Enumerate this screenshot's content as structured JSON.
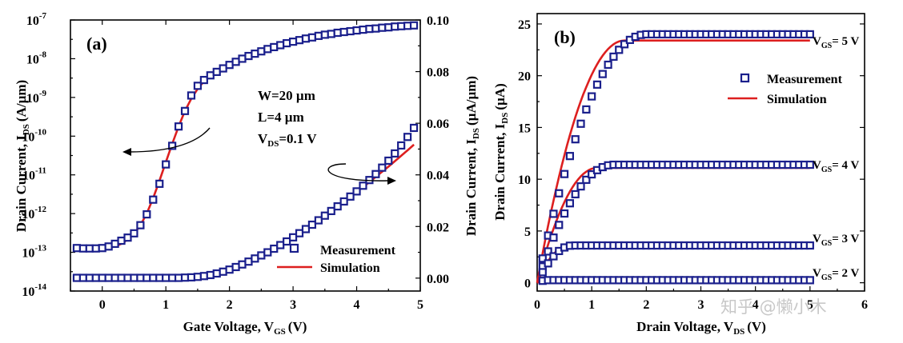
{
  "chart_data": [
    {
      "type": "line",
      "panel_label": "(a)",
      "xlabel": "Gate Voltage, V",
      "xlabel_sub": "GS",
      "xlabel_unit": "(V)",
      "ylabel_left": "Drain Current, I",
      "ylabel_left_sub": "DS",
      "ylabel_left_unit": "(A/µm)",
      "ylabel_right": "Drain Current, I",
      "ylabel_right_sub": "DS",
      "ylabel_right_unit": "(µA/µm)",
      "xlim": [
        -0.5,
        5
      ],
      "x_ticks": [
        "0",
        "1",
        "2",
        "3",
        "4",
        "5"
      ],
      "left_exponents": [
        "-14",
        "-13",
        "-12",
        "-11",
        "-10",
        "-9",
        "-8",
        "-7"
      ],
      "right_ticks": [
        "0.00",
        "0.02",
        "0.04",
        "0.06",
        "0.08",
        "0.10"
      ],
      "ylim_right": [
        -0.005,
        0.1
      ],
      "annotation": {
        "w": "W=20 µm",
        "l": "L=4 µm",
        "vds_prefix": "V",
        "vds_sub": "DS",
        "vds_value": "=0.1 V"
      },
      "legend": {
        "measurement": "Measurement",
        "simulation": "Simulation"
      },
      "series": [
        {
          "name": "log-scale (left axis)",
          "x": [
            -0.4,
            -0.3,
            -0.2,
            -0.1,
            0.0,
            0.1,
            0.2,
            0.3,
            0.4,
            0.5,
            0.6,
            0.7,
            0.8,
            0.9,
            1.0,
            1.1,
            1.2,
            1.3,
            1.4,
            1.5,
            1.6,
            1.7,
            1.8,
            1.9,
            2.0,
            2.1,
            2.2,
            2.3,
            2.4,
            2.5,
            2.6,
            2.7,
            2.8,
            2.9,
            3.0,
            3.1,
            3.2,
            3.3,
            3.4,
            3.5,
            3.6,
            3.7,
            3.8,
            3.9,
            4.0,
            4.1,
            4.2,
            4.3,
            4.4,
            4.5,
            4.6,
            4.7,
            4.8,
            4.9
          ],
          "log10_measurement": [
            -12.89,
            -12.9,
            -12.9,
            -12.9,
            -12.89,
            -12.85,
            -12.78,
            -12.7,
            -12.62,
            -12.51,
            -12.3,
            -12.02,
            -11.64,
            -11.23,
            -10.73,
            -10.25,
            -9.75,
            -9.35,
            -8.95,
            -8.7,
            -8.55,
            -8.43,
            -8.34,
            -8.25,
            -8.16,
            -8.08,
            -8.0,
            -7.93,
            -7.87,
            -7.81,
            -7.75,
            -7.7,
            -7.65,
            -7.6,
            -7.56,
            -7.52,
            -7.48,
            -7.45,
            -7.41,
            -7.38,
            -7.36,
            -7.33,
            -7.31,
            -7.29,
            -7.27,
            -7.25,
            -7.23,
            -7.22,
            -7.2,
            -7.19,
            -7.17,
            -7.16,
            -7.15,
            -7.14
          ],
          "log10_simulation": [
            -12.92,
            -12.92,
            -12.92,
            -12.91,
            -12.9,
            -12.88,
            -12.85,
            -12.78,
            -12.67,
            -12.52,
            -12.3,
            -12.0,
            -11.6,
            -11.15,
            -10.67,
            -10.2,
            -9.75,
            -9.35,
            -9.03,
            -8.78,
            -8.58,
            -8.44,
            -8.33,
            -8.24,
            -8.16,
            -8.08,
            -8.01,
            -7.94,
            -7.88,
            -7.82,
            -7.76,
            -7.71,
            -7.66,
            -7.61,
            -7.57,
            -7.53,
            -7.49,
            -7.45,
            -7.42,
            -7.39,
            -7.36,
            -7.33,
            -7.31,
            -7.29,
            -7.27,
            -7.25,
            -7.23,
            -7.22,
            -7.2,
            -7.19,
            -7.17,
            -7.16,
            -7.15,
            -7.14
          ]
        },
        {
          "name": "linear-scale (right axis)",
          "x": [
            -0.4,
            -0.3,
            -0.2,
            -0.1,
            0.0,
            0.1,
            0.2,
            0.3,
            0.4,
            0.5,
            0.6,
            0.7,
            0.8,
            0.9,
            1.0,
            1.1,
            1.2,
            1.3,
            1.4,
            1.5,
            1.6,
            1.7,
            1.8,
            1.9,
            2.0,
            2.1,
            2.2,
            2.3,
            2.4,
            2.5,
            2.6,
            2.7,
            2.8,
            2.9,
            3.0,
            3.1,
            3.2,
            3.3,
            3.4,
            3.5,
            3.6,
            3.7,
            3.8,
            3.9,
            4.0,
            4.1,
            4.2,
            4.3,
            4.4,
            4.5,
            4.6,
            4.7,
            4.8,
            4.9
          ],
          "measurement": [
            0.0001,
            0.0001,
            0.0001,
            0.0001,
            0.0001,
            0.0001,
            0.0001,
            0.0001,
            0.0001,
            0.0001,
            0.0001,
            0.0001,
            0.0001,
            0.0001,
            0.0001,
            0.0001,
            0.0001,
            0.0002,
            0.0003,
            0.0005,
            0.0008,
            0.0012,
            0.0018,
            0.0025,
            0.0033,
            0.0043,
            0.0053,
            0.0064,
            0.0076,
            0.0088,
            0.01,
            0.0114,
            0.0128,
            0.0142,
            0.0158,
            0.0174,
            0.019,
            0.0207,
            0.0224,
            0.0242,
            0.026,
            0.0278,
            0.0297,
            0.0316,
            0.0336,
            0.0358,
            0.038,
            0.0403,
            0.0428,
            0.0455,
            0.0483,
            0.0514,
            0.0547,
            0.0582
          ],
          "simulation": [
            0.0001,
            0.0001,
            0.0001,
            0.0001,
            0.0001,
            0.0001,
            0.0001,
            0.0001,
            0.0001,
            0.0001,
            0.0001,
            0.0001,
            0.0001,
            0.0001,
            0.0001,
            0.0001,
            0.0001,
            0.0002,
            0.0003,
            0.0005,
            0.0008,
            0.0012,
            0.0018,
            0.0025,
            0.0033,
            0.0042,
            0.0052,
            0.0063,
            0.0075,
            0.0088,
            0.0101,
            0.0115,
            0.0129,
            0.0144,
            0.016,
            0.0176,
            0.0192,
            0.0209,
            0.0226,
            0.0243,
            0.0261,
            0.0279,
            0.0297,
            0.0315,
            0.0334,
            0.0353,
            0.0372,
            0.0392,
            0.0412,
            0.0432,
            0.0453,
            0.0474,
            0.0495,
            0.0517
          ]
        }
      ]
    },
    {
      "type": "line",
      "panel_label": "(b)",
      "xlabel": "Drain Voltage, V",
      "xlabel_sub": "DS",
      "xlabel_unit": "(V)",
      "ylabel": "Drain Current, I",
      "ylabel_sub": "DS",
      "ylabel_unit": "(µA)",
      "xlim": [
        0,
        6
      ],
      "ylim": [
        -0.8,
        26
      ],
      "x_ticks": [
        "0",
        "1",
        "2",
        "3",
        "4",
        "5",
        "6"
      ],
      "y_ticks": [
        "0",
        "5",
        "10",
        "15",
        "20",
        "25"
      ],
      "legend": {
        "measurement": "Measurement",
        "simulation": "Simulation"
      },
      "curve_labels": [
        {
          "prefix": "V",
          "sub": "GS",
          "value": "= 5 V"
        },
        {
          "prefix": "V",
          "sub": "GS",
          "value": "= 4 V"
        },
        {
          "prefix": "V",
          "sub": "GS",
          "value": "= 3 V"
        },
        {
          "prefix": "V",
          "sub": "GS",
          "value": "= 2 V"
        }
      ],
      "series": [
        {
          "name": "VGS = 5 V",
          "isat_meas": 24.0,
          "vsat_meas": 2.0,
          "isat_sim": 23.4,
          "vsat_sim": 1.6
        },
        {
          "name": "VGS = 4 V",
          "isat_meas": 11.4,
          "vsat_meas": 1.4,
          "isat_sim": 11.1,
          "vsat_sim": 1.1
        },
        {
          "name": "VGS = 3 V",
          "isat_meas": 3.6,
          "vsat_meas": 0.65,
          "isat_sim": 3.5,
          "vsat_sim": 0.55
        },
        {
          "name": "VGS = 2 V",
          "isat_meas": 0.25,
          "vsat_meas": 0.2,
          "isat_sim": 0.2,
          "vsat_sim": 0.2
        }
      ],
      "x_points_start": 0.1,
      "x_points_step": 0.1,
      "x_points_count": 50
    }
  ],
  "watermark": "知乎 @懒小木"
}
